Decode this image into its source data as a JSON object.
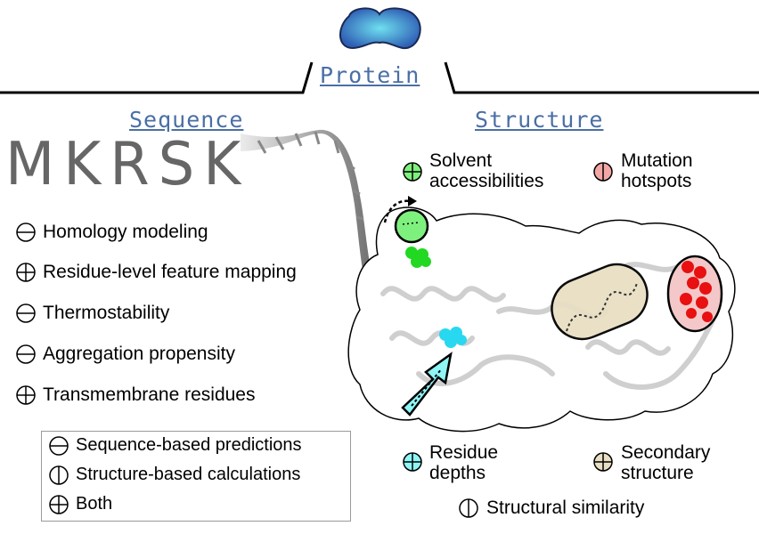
{
  "title": "Protein",
  "sections": {
    "sequence": "Sequence",
    "structure": "Structure"
  },
  "sequence_letters": "MKRSK",
  "features": [
    {
      "label": "Homology modeling",
      "type": "sequence"
    },
    {
      "label": "Residue-level feature mapping",
      "type": "both"
    },
    {
      "label": "Thermostability",
      "type": "sequence"
    },
    {
      "label": "Aggregation propensity",
      "type": "sequence"
    },
    {
      "label": "Transmembrane residues",
      "type": "both"
    }
  ],
  "legend": [
    {
      "label": "Sequence-based predictions",
      "type": "sequence"
    },
    {
      "label": "Structure-based calculations",
      "type": "structure"
    },
    {
      "label": "Both",
      "type": "both"
    }
  ],
  "structure_labels": {
    "solvent": "Solvent\naccessibilities",
    "mutation": "Mutation\nhotspots",
    "depths": "Residue\ndepths",
    "secondary": "Secondary\nstructure",
    "similarity": "Structural similarity"
  },
  "colors": {
    "header_blue": "#4a6fa5",
    "solvent_green": "#7ef07e",
    "mutation_pink": "#f4a6a6",
    "depth_cyan": "#8ff5f5",
    "secondary_tan": "#e8dfc4",
    "protein_blob": "#3b6cc0"
  }
}
